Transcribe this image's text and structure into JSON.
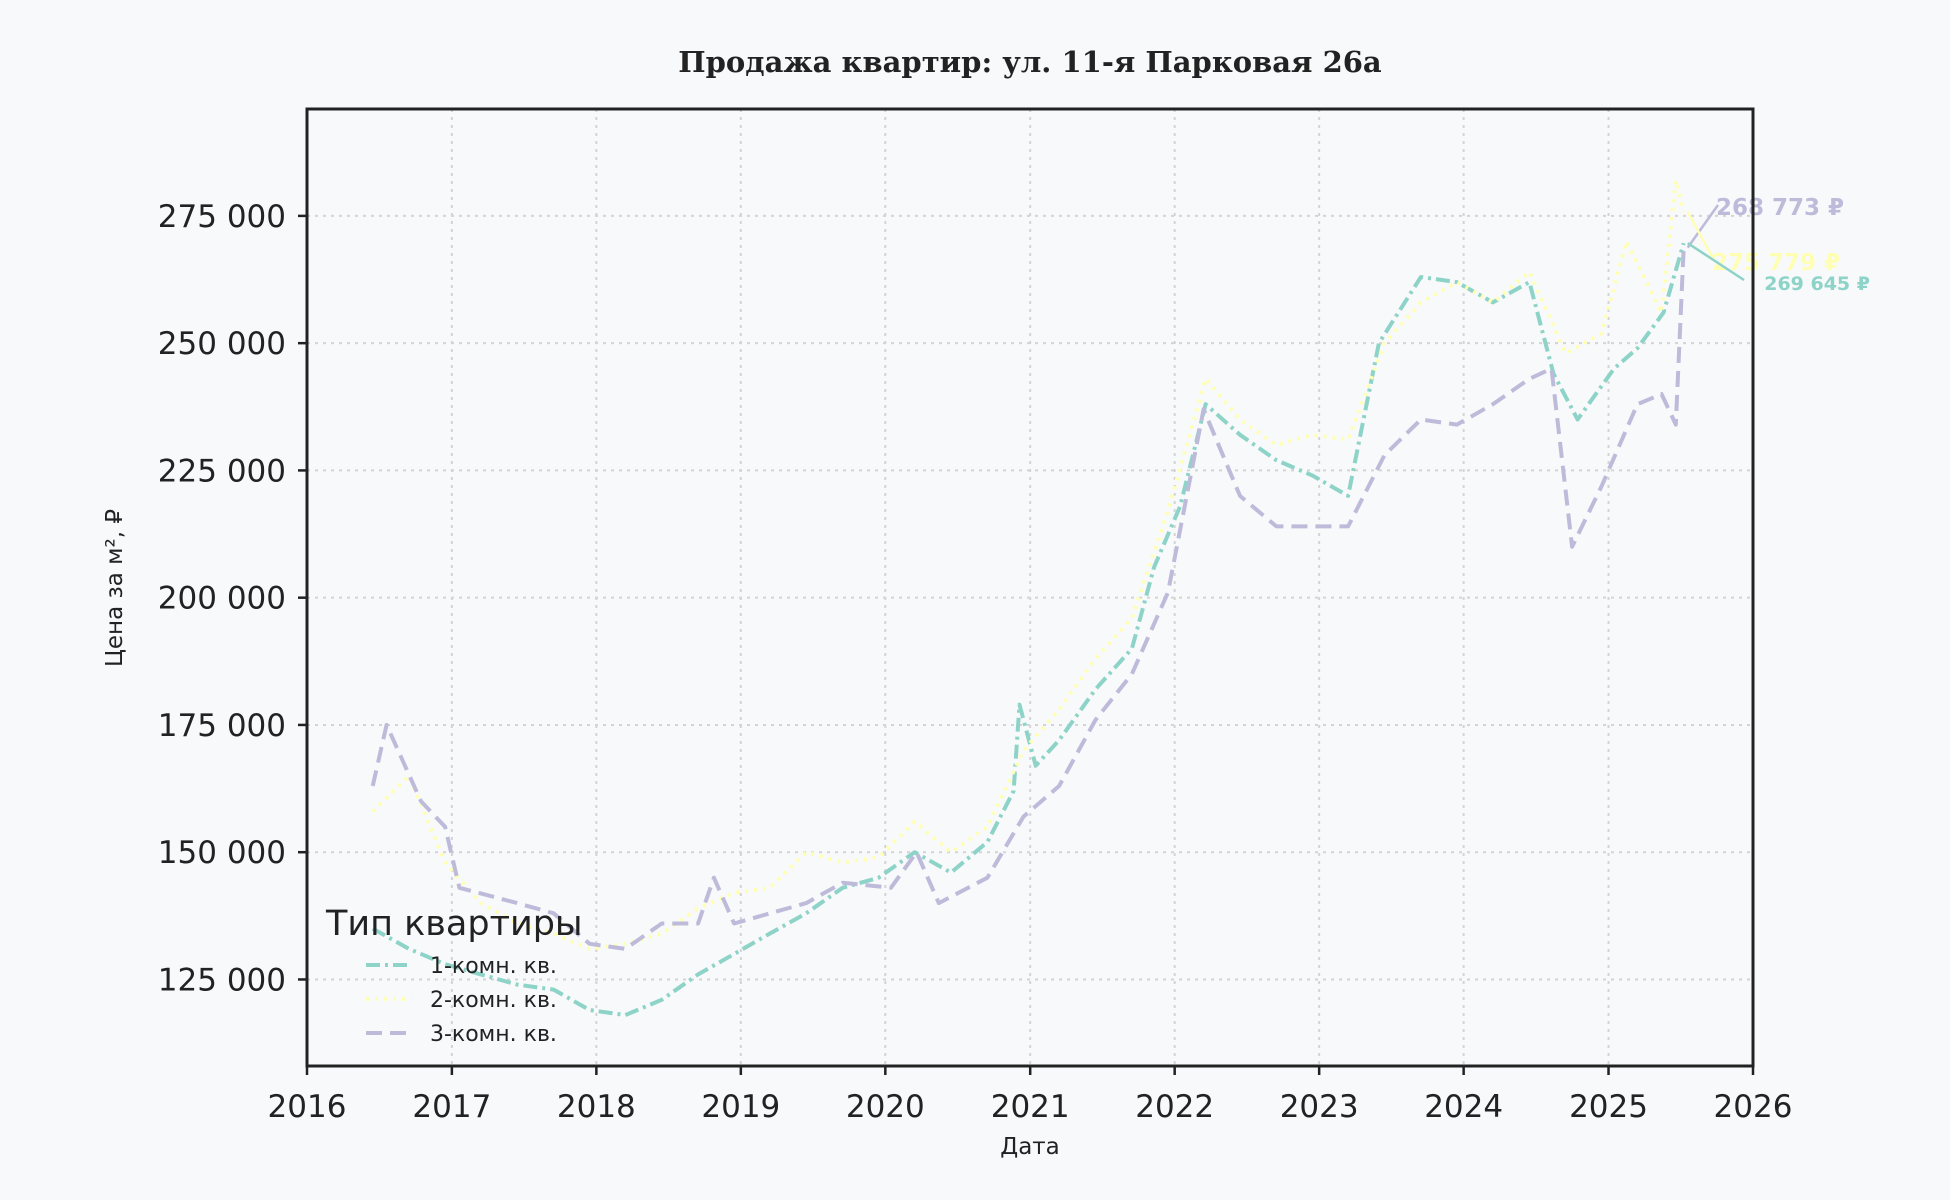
{
  "chart_data": {
    "type": "line",
    "title": "Продажа квартир: ул. 11-я Парковая 26а",
    "xlabel": "Дата",
    "ylabel": "Цена за м², ₽",
    "xlim": [
      "2016-01-01",
      "2026-01-01"
    ],
    "ylim": [
      108000,
      296000
    ],
    "x_ticks": [
      {
        "date": "2016-01-01",
        "label": "2016"
      },
      {
        "date": "2017-01-01",
        "label": "2017"
      },
      {
        "date": "2018-01-01",
        "label": "2018"
      },
      {
        "date": "2019-01-01",
        "label": "2019"
      },
      {
        "date": "2020-01-01",
        "label": "2020"
      },
      {
        "date": "2021-01-01",
        "label": "2021"
      },
      {
        "date": "2022-01-01",
        "label": "2022"
      },
      {
        "date": "2023-01-01",
        "label": "2023"
      },
      {
        "date": "2024-01-01",
        "label": "2024"
      },
      {
        "date": "2025-01-01",
        "label": "2025"
      },
      {
        "date": "2026-01-01",
        "label": "2026"
      }
    ],
    "y_ticks": [
      {
        "value": 125000,
        "label": "125 000"
      },
      {
        "value": 150000,
        "label": "150 000"
      },
      {
        "value": 175000,
        "label": "175 000"
      },
      {
        "value": 200000,
        "label": "200 000"
      },
      {
        "value": 225000,
        "label": "225 000"
      },
      {
        "value": 250000,
        "label": "250 000"
      },
      {
        "value": 275000,
        "label": "275 000"
      }
    ],
    "grid": true,
    "legend": {
      "title": "Тип квартиры",
      "placement": "lower-left"
    },
    "series": [
      {
        "name": "1-комн. кв.",
        "color": "#8dd3c7",
        "dash": "dashdot",
        "points": [
          [
            "2016-06-15",
            135000
          ],
          [
            "2016-09-15",
            131000
          ],
          [
            "2016-12-15",
            128000
          ],
          [
            "2017-03-15",
            126000
          ],
          [
            "2017-06-15",
            124000
          ],
          [
            "2017-09-15",
            123000
          ],
          [
            "2017-12-15",
            119000
          ],
          [
            "2018-03-15",
            118000
          ],
          [
            "2018-06-15",
            121000
          ],
          [
            "2018-09-15",
            126000
          ],
          [
            "2018-12-15",
            130000
          ],
          [
            "2019-03-15",
            134000
          ],
          [
            "2019-06-15",
            138000
          ],
          [
            "2019-09-15",
            143000
          ],
          [
            "2019-12-15",
            145000
          ],
          [
            "2020-03-15",
            150000
          ],
          [
            "2020-06-15",
            146000
          ],
          [
            "2020-09-15",
            152000
          ],
          [
            "2020-11-20",
            162000
          ],
          [
            "2020-12-05",
            179000
          ],
          [
            "2021-01-15",
            167000
          ],
          [
            "2021-03-15",
            172000
          ],
          [
            "2021-06-15",
            182000
          ],
          [
            "2021-09-15",
            190000
          ],
          [
            "2021-11-10",
            206000
          ],
          [
            "2022-01-15",
            218000
          ],
          [
            "2022-03-20",
            238000
          ],
          [
            "2022-06-15",
            232000
          ],
          [
            "2022-09-15",
            227000
          ],
          [
            "2022-12-15",
            224000
          ],
          [
            "2023-03-15",
            220000
          ],
          [
            "2023-06-01",
            250000
          ],
          [
            "2023-09-15",
            263000
          ],
          [
            "2023-12-15",
            262000
          ],
          [
            "2024-03-15",
            258000
          ],
          [
            "2024-06-15",
            262000
          ],
          [
            "2024-08-15",
            244000
          ],
          [
            "2024-10-15",
            235000
          ],
          [
            "2025-01-15",
            245000
          ],
          [
            "2025-03-15",
            249000
          ],
          [
            "2025-05-20",
            256000
          ],
          [
            "2025-07-10",
            269645
          ]
        ]
      },
      {
        "name": "2-комн. кв.",
        "color": "#ffffb3",
        "dash": "dotted",
        "points": [
          [
            "2016-06-15",
            158000
          ],
          [
            "2016-09-15",
            165000
          ],
          [
            "2016-12-15",
            148000
          ],
          [
            "2017-03-15",
            140000
          ],
          [
            "2017-06-15",
            136000
          ],
          [
            "2017-09-15",
            134000
          ],
          [
            "2017-12-15",
            131000
          ],
          [
            "2018-03-15",
            132000
          ],
          [
            "2018-06-15",
            134000
          ],
          [
            "2018-09-15",
            139000
          ],
          [
            "2018-12-15",
            142000
          ],
          [
            "2019-03-15",
            143000
          ],
          [
            "2019-06-15",
            150000
          ],
          [
            "2019-09-15",
            148000
          ],
          [
            "2019-12-15",
            149000
          ],
          [
            "2020-03-15",
            156000
          ],
          [
            "2020-06-15",
            150000
          ],
          [
            "2020-09-15",
            155000
          ],
          [
            "2020-12-15",
            170000
          ],
          [
            "2021-03-15",
            178000
          ],
          [
            "2021-06-15",
            188000
          ],
          [
            "2021-09-15",
            196000
          ],
          [
            "2021-12-15",
            217000
          ],
          [
            "2022-03-20",
            243000
          ],
          [
            "2022-06-15",
            235000
          ],
          [
            "2022-09-15",
            230000
          ],
          [
            "2022-12-15",
            232000
          ],
          [
            "2023-03-15",
            231000
          ],
          [
            "2023-06-15",
            250000
          ],
          [
            "2023-09-15",
            258000
          ],
          [
            "2023-12-15",
            262000
          ],
          [
            "2024-03-15",
            258000
          ],
          [
            "2024-06-15",
            264000
          ],
          [
            "2024-09-15",
            248000
          ],
          [
            "2024-12-15",
            252000
          ],
          [
            "2025-02-15",
            270000
          ],
          [
            "2025-05-15",
            256000
          ],
          [
            "2025-06-20",
            282000
          ],
          [
            "2025-07-10",
            275779
          ]
        ]
      },
      {
        "name": "3-комн. кв.",
        "color": "#bebada",
        "dash": "dashed",
        "points": [
          [
            "2016-06-15",
            163000
          ],
          [
            "2016-07-20",
            175000
          ],
          [
            "2016-10-15",
            160000
          ],
          [
            "2016-12-15",
            155000
          ],
          [
            "2017-01-20",
            143000
          ],
          [
            "2017-06-15",
            140000
          ],
          [
            "2017-09-15",
            138000
          ],
          [
            "2017-12-15",
            132000
          ],
          [
            "2018-03-15",
            131000
          ],
          [
            "2018-06-15",
            136000
          ],
          [
            "2018-09-15",
            136000
          ],
          [
            "2018-10-25",
            145000
          ],
          [
            "2018-12-15",
            136000
          ],
          [
            "2019-06-15",
            140000
          ],
          [
            "2019-09-15",
            144000
          ],
          [
            "2020-01-15",
            143000
          ],
          [
            "2020-03-20",
            150000
          ],
          [
            "2020-05-15",
            140000
          ],
          [
            "2020-09-15",
            145000
          ],
          [
            "2020-12-15",
            157000
          ],
          [
            "2021-03-15",
            163000
          ],
          [
            "2021-06-15",
            176000
          ],
          [
            "2021-09-15",
            185000
          ],
          [
            "2021-12-15",
            201000
          ],
          [
            "2022-03-15",
            237000
          ],
          [
            "2022-06-15",
            220000
          ],
          [
            "2022-09-15",
            214000
          ],
          [
            "2022-12-15",
            214000
          ],
          [
            "2023-03-15",
            214000
          ],
          [
            "2023-06-15",
            228000
          ],
          [
            "2023-09-15",
            235000
          ],
          [
            "2023-12-15",
            234000
          ],
          [
            "2024-03-15",
            238000
          ],
          [
            "2024-06-15",
            243000
          ],
          [
            "2024-08-10",
            245000
          ],
          [
            "2024-10-01",
            210000
          ],
          [
            "2024-12-15",
            222000
          ],
          [
            "2025-03-15",
            238000
          ],
          [
            "2025-05-15",
            240000
          ],
          [
            "2025-06-20",
            234000
          ],
          [
            "2025-07-10",
            268773
          ]
        ]
      }
    ],
    "annotations": [
      {
        "text": "268 773 ₽",
        "series": "3-комн. кв.",
        "color": "#bebada",
        "size": 23
      },
      {
        "text": "275 779 ₽",
        "series": "2-комн. кв.",
        "color": "#ffffb3",
        "size": 23
      },
      {
        "text": "269 645 ₽",
        "series": "1-комн. кв.",
        "color": "#8dd3c7",
        "size": 19
      }
    ]
  }
}
